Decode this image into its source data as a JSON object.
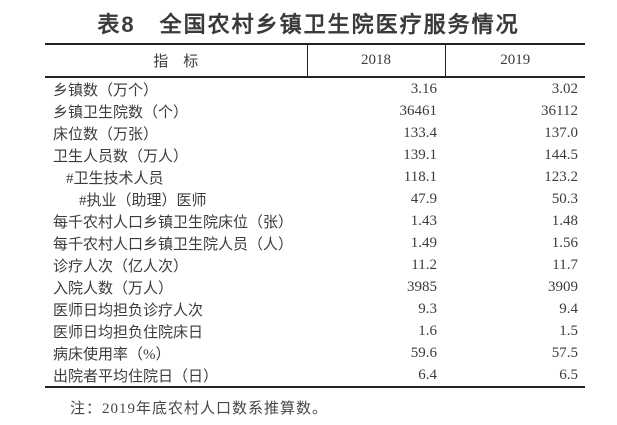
{
  "title": "表8　全国农村乡镇卫生院医疗服务情况",
  "table": {
    "columns": [
      "指　标",
      "2018",
      "2019"
    ],
    "rows": [
      {
        "label": "乡镇数（万个）",
        "indent": 0,
        "v2018": "3.16",
        "v2019": "3.02"
      },
      {
        "label": "乡镇卫生院数（个）",
        "indent": 0,
        "v2018": "36461",
        "v2019": "36112"
      },
      {
        "label": "床位数（万张）",
        "indent": 0,
        "v2018": "133.4",
        "v2019": "137.0"
      },
      {
        "label": "卫生人员数（万人）",
        "indent": 0,
        "v2018": "139.1",
        "v2019": "144.5"
      },
      {
        "label": "#卫生技术人员",
        "indent": 1,
        "v2018": "118.1",
        "v2019": "123.2"
      },
      {
        "label": "#执业（助理）医师",
        "indent": 2,
        "v2018": "47.9",
        "v2019": "50.3"
      },
      {
        "label": "每千农村人口乡镇卫生院床位（张）",
        "indent": 0,
        "v2018": "1.43",
        "v2019": "1.48"
      },
      {
        "label": "每千农村人口乡镇卫生院人员（人）",
        "indent": 0,
        "v2018": "1.49",
        "v2019": "1.56"
      },
      {
        "label": "诊疗人次（亿人次）",
        "indent": 0,
        "v2018": "11.2",
        "v2019": "11.7"
      },
      {
        "label": "入院人数（万人）",
        "indent": 0,
        "v2018": "3985",
        "v2019": "3909"
      },
      {
        "label": "医师日均担负诊疗人次",
        "indent": 0,
        "v2018": "9.3",
        "v2019": "9.4"
      },
      {
        "label": "医师日均担负住院床日",
        "indent": 0,
        "v2018": "1.6",
        "v2019": "1.5"
      },
      {
        "label": "病床使用率（%）",
        "indent": 0,
        "v2018": "59.6",
        "v2019": "57.5"
      },
      {
        "label": "出院者平均住院日（日）",
        "indent": 0,
        "v2018": "6.4",
        "v2019": "6.5"
      }
    ]
  },
  "note": "注：2019年底农村人口数系推算数。",
  "colors": {
    "background": "#ffffff",
    "text": "#3c3c3c",
    "border": "#222222"
  }
}
